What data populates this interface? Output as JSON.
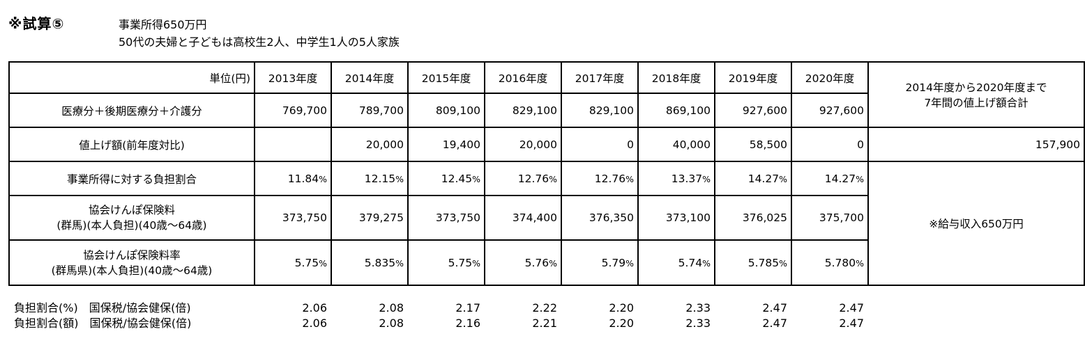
{
  "header": {
    "id": "※試算⑤",
    "line1": "事業所得650万円",
    "line2": "50代の夫婦と子どもは高校生2人、中学生1人の5人家族"
  },
  "table": {
    "unit_label": "単位(円)",
    "years": [
      "2013年度",
      "2014年度",
      "2015年度",
      "2016年度",
      "2017年度",
      "2018年度",
      "2019年度",
      "2020年度"
    ],
    "rows": [
      {
        "label": "医療分＋後期医療分＋介護分",
        "values": [
          "769,700",
          "789,700",
          "809,100",
          "829,100",
          "829,100",
          "869,100",
          "927,600",
          "927,600"
        ]
      },
      {
        "label": "値上げ額(前年度対比)",
        "values": [
          "",
          "20,000",
          "19,400",
          "20,000",
          "0",
          "40,000",
          "58,500",
          "0"
        ]
      },
      {
        "label": "事業所得に対する負担割合",
        "values": [
          "11.84",
          "12.15",
          "12.45",
          "12.76",
          "12.76",
          "13.37",
          "14.27",
          "14.27"
        ]
      },
      {
        "label_line1": "協会けんぽ保険料",
        "label_line2": "(群馬)(本人負担)(40歳～64歳)",
        "values": [
          "373,750",
          "379,275",
          "373,750",
          "374,400",
          "376,350",
          "373,100",
          "376,025",
          "375,700"
        ]
      },
      {
        "label_line1": "協会けんぽ保険料率",
        "label_line2": "(群馬県)(本人負担)(40歳～64歳)",
        "values": [
          "5.75",
          "5.835",
          "5.75",
          "5.76",
          "5.79",
          "5.74",
          "5.785",
          "5.780"
        ]
      }
    ],
    "percent_sign": "%",
    "side": {
      "total_caption_line1": "2014年度から2020年度まで",
      "total_caption_line2": "7年間の値上げ額合計",
      "total_value": "157,900",
      "note": "※給与収入650万円"
    }
  },
  "footer": [
    {
      "label": "負担割合(%)　国保税/協会健保(倍)",
      "values": [
        "2.06",
        "2.08",
        "2.17",
        "2.22",
        "2.20",
        "2.33",
        "2.47",
        "2.47"
      ]
    },
    {
      "label": "負担割合(額)　国保税/協会健保(倍)",
      "values": [
        "2.06",
        "2.08",
        "2.16",
        "2.21",
        "2.20",
        "2.33",
        "2.47",
        "2.47"
      ]
    }
  ]
}
